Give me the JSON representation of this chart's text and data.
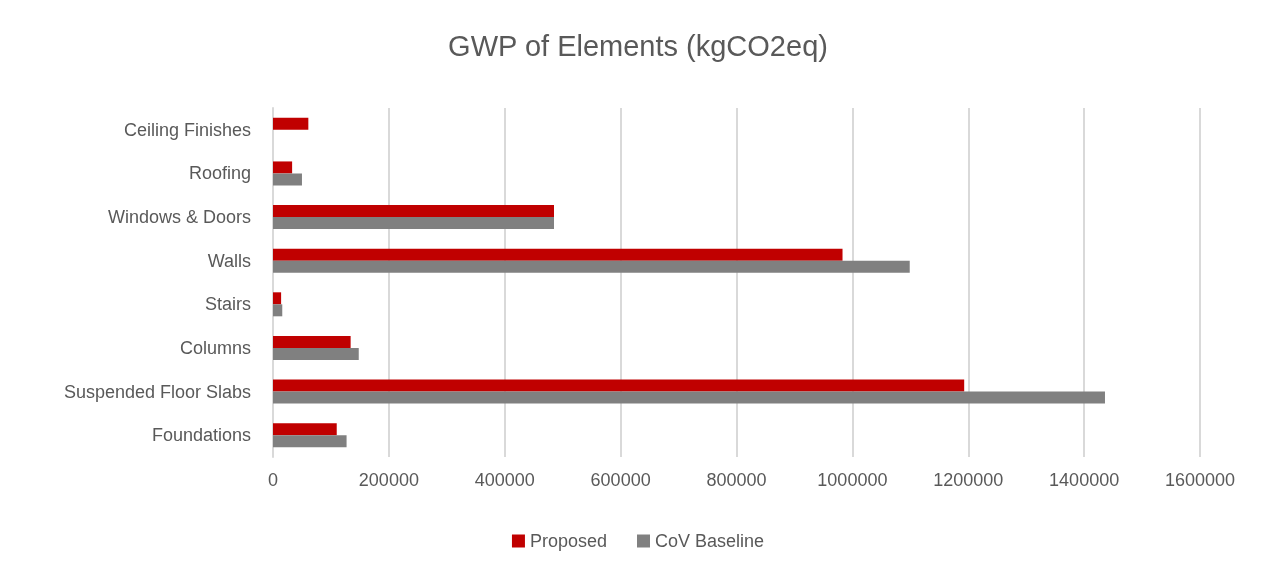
{
  "chart_data": {
    "type": "bar",
    "orientation": "horizontal",
    "title": "GWP of Elements (kgCO2eq)",
    "categories": [
      "Ceiling Finishes",
      "Roofing",
      "Windows & Doors",
      "Walls",
      "Stairs",
      "Columns",
      "Suspended Floor Slabs",
      "Foundations"
    ],
    "series": [
      {
        "name": "Proposed",
        "color": "#c00000",
        "values": [
          61000,
          33000,
          485000,
          983000,
          14000,
          134000,
          1193000,
          110000
        ]
      },
      {
        "name": "CoV Baseline",
        "color": "#808080",
        "values": [
          null,
          50000,
          485000,
          1099000,
          16000,
          148000,
          1436000,
          127000
        ]
      }
    ],
    "xlim": [
      0,
      1600000
    ],
    "xticks": [
      0,
      200000,
      400000,
      600000,
      800000,
      1000000,
      1200000,
      1400000,
      1600000
    ],
    "grid": "x",
    "legend": "bottom"
  }
}
